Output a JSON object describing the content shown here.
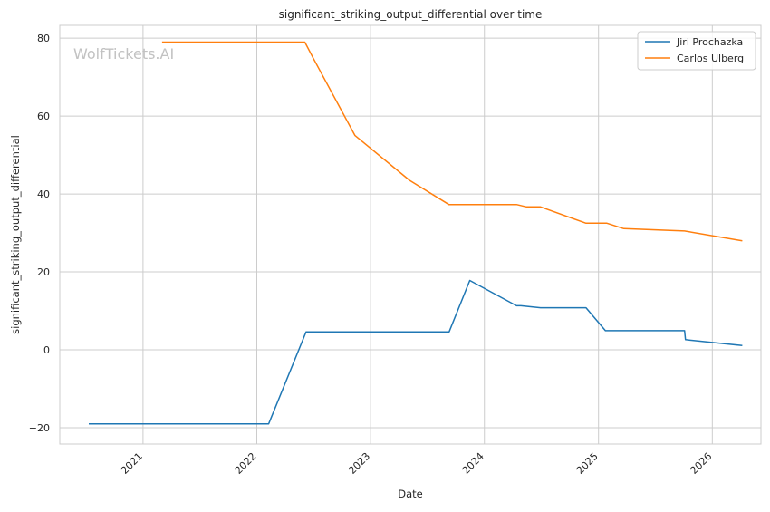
{
  "watermark": "WolfTickets.AI",
  "chart_data": {
    "type": "line",
    "title": "significant_striking_output_differential over time",
    "xlabel": "Date",
    "ylabel": "significant_striking_output_differential",
    "x_ticks": [
      "2021",
      "2022",
      "2023",
      "2024",
      "2025",
      "2026"
    ],
    "y_ticks": [
      -20,
      0,
      20,
      40,
      60,
      80
    ],
    "xlim": [
      "2020-04-09",
      "2026-06-06"
    ],
    "ylim": [
      -24.2,
      83.3
    ],
    "grid": true,
    "legend_position": "top-right",
    "series": [
      {
        "name": "Jiri Prochazka",
        "color": "#1f77b4",
        "points": [
          [
            "2020-07-11",
            -19
          ],
          [
            "2022-02-08",
            -19
          ],
          [
            "2022-06-08",
            4.6
          ],
          [
            "2023-09-10",
            4.6
          ],
          [
            "2023-11-15",
            17.8
          ],
          [
            "2024-04-13",
            11.3
          ],
          [
            "2024-04-27",
            11.3
          ],
          [
            "2024-06-29",
            10.8
          ],
          [
            "2024-11-22",
            10.8
          ],
          [
            "2025-01-23",
            4.9
          ],
          [
            "2025-10-04",
            4.9
          ],
          [
            "2025-10-07",
            2.6
          ],
          [
            "2026-04-07",
            1.1
          ]
        ]
      },
      {
        "name": "Carlos Ulberg",
        "color": "#ff7f0e",
        "points": [
          [
            "2021-03-03",
            79
          ],
          [
            "2022-06-04",
            79
          ],
          [
            "2022-06-30",
            75
          ],
          [
            "2022-11-12",
            55
          ],
          [
            "2023-05-06",
            43.5
          ],
          [
            "2023-09-09",
            37.3
          ],
          [
            "2024-04-13",
            37.3
          ],
          [
            "2024-05-15",
            36.7
          ],
          [
            "2024-06-29",
            36.7
          ],
          [
            "2024-11-22",
            32.5
          ],
          [
            "2025-01-28",
            32.5
          ],
          [
            "2025-03-23",
            31.1
          ],
          [
            "2025-10-04",
            30.5
          ],
          [
            "2026-04-07",
            28
          ]
        ]
      }
    ]
  }
}
